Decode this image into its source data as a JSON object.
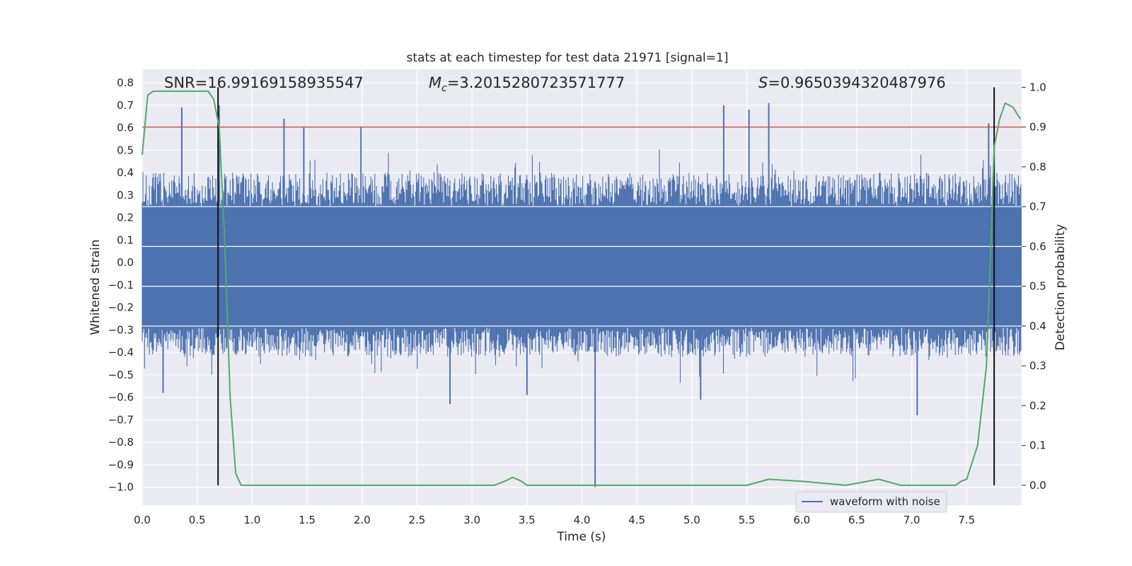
{
  "chart_data": {
    "type": "line",
    "title": "stats at each timestep for test data 21971 [signal=1]",
    "xlabel": "Time (s)",
    "ylabel": "Whitened strain",
    "y2label": "Detection probability",
    "xlim": [
      0,
      8
    ],
    "ylim": [
      -1.08,
      0.86
    ],
    "y2lim": [
      -0.05,
      1.045
    ],
    "x_ticks": [
      "0.0",
      "0.5",
      "1.0",
      "1.5",
      "2.0",
      "2.5",
      "3.0",
      "3.5",
      "4.0",
      "4.5",
      "5.0",
      "5.5",
      "6.0",
      "6.5",
      "7.0",
      "7.5"
    ],
    "y_ticks": [
      "0.8",
      "0.7",
      "0.6",
      "0.5",
      "0.4",
      "0.3",
      "0.2",
      "0.1",
      "0.0",
      "−0.1",
      "−0.2",
      "−0.3",
      "−0.4",
      "−0.5",
      "−0.6",
      "−0.7",
      "−0.8",
      "−0.9",
      "−1.0"
    ],
    "y2_ticks": [
      "1.0",
      "0.9",
      "0.8",
      "0.7",
      "0.6",
      "0.5",
      "0.4",
      "0.3",
      "0.2",
      "0.1",
      "0.0"
    ],
    "annotations": {
      "snr": "SNR=16.99169158935547",
      "mc_symbol": "M",
      "mc_sub": "c",
      "mc_value": "=3.2015280723571777",
      "s_symbol": "S",
      "s_value": "=0.9650394320487976"
    },
    "threshold": {
      "y2": 0.9,
      "color": "#c44e52"
    },
    "vlines": [
      0.69,
      7.75
    ],
    "waveform": {
      "name": "waveform with noise",
      "color": "#4c72b0",
      "band": [
        -0.29,
        0.25
      ],
      "typical_peak": 0.4,
      "notable_spikes": [
        {
          "x": 0.36,
          "y": 0.69
        },
        {
          "x": 0.7,
          "y": 0.7
        },
        {
          "x": 1.29,
          "y": 0.64
        },
        {
          "x": 1.47,
          "y": 0.6
        },
        {
          "x": 1.99,
          "y": 0.6
        },
        {
          "x": 2.8,
          "y": -0.63
        },
        {
          "x": 4.12,
          "y": -1.0
        },
        {
          "x": 5.29,
          "y": 0.7
        },
        {
          "x": 5.52,
          "y": 0.68
        },
        {
          "x": 5.7,
          "y": 0.71
        },
        {
          "x": 7.05,
          "y": -0.68
        },
        {
          "x": 5.08,
          "y": -0.61
        },
        {
          "x": 3.5,
          "y": -0.59
        },
        {
          "x": 0.19,
          "y": -0.58
        },
        {
          "x": 7.7,
          "y": 0.62
        }
      ]
    },
    "detection_probability": {
      "color": "#55a868",
      "x": [
        0.0,
        0.05,
        0.1,
        0.2,
        0.3,
        0.4,
        0.5,
        0.6,
        0.65,
        0.7,
        0.75,
        0.8,
        0.85,
        0.9,
        0.95,
        1.0,
        1.2,
        1.5,
        1.8,
        2.0,
        2.2,
        2.5,
        2.8,
        3.0,
        3.2,
        3.3,
        3.37,
        3.45,
        3.5,
        3.6,
        3.7,
        3.8,
        3.9,
        4.0,
        4.2,
        4.5,
        5.0,
        5.5,
        5.7,
        6.0,
        6.4,
        6.7,
        6.9,
        7.1,
        7.3,
        7.4,
        7.45,
        7.5,
        7.6,
        7.68,
        7.72,
        7.75,
        7.8,
        7.85,
        7.92,
        7.99
      ],
      "y": [
        0.83,
        0.98,
        0.99,
        0.99,
        0.99,
        0.99,
        0.99,
        0.99,
        0.97,
        0.9,
        0.62,
        0.22,
        0.03,
        0.0,
        0.0,
        0.0,
        0.0,
        0.0,
        0.0,
        0.0,
        0.0,
        0.0,
        0.0,
        0.0,
        0.0,
        0.01,
        0.02,
        0.01,
        0.0,
        0.0,
        0.0,
        0.0,
        0.0,
        0.0,
        0.0,
        0.0,
        0.0,
        0.0,
        0.015,
        0.01,
        0.0,
        0.015,
        0.0,
        0.0,
        0.0,
        0.0,
        0.01,
        0.015,
        0.1,
        0.3,
        0.6,
        0.85,
        0.92,
        0.96,
        0.95,
        0.92
      ]
    },
    "legend": {
      "label": "waveform with noise",
      "loc": "lower right"
    }
  }
}
